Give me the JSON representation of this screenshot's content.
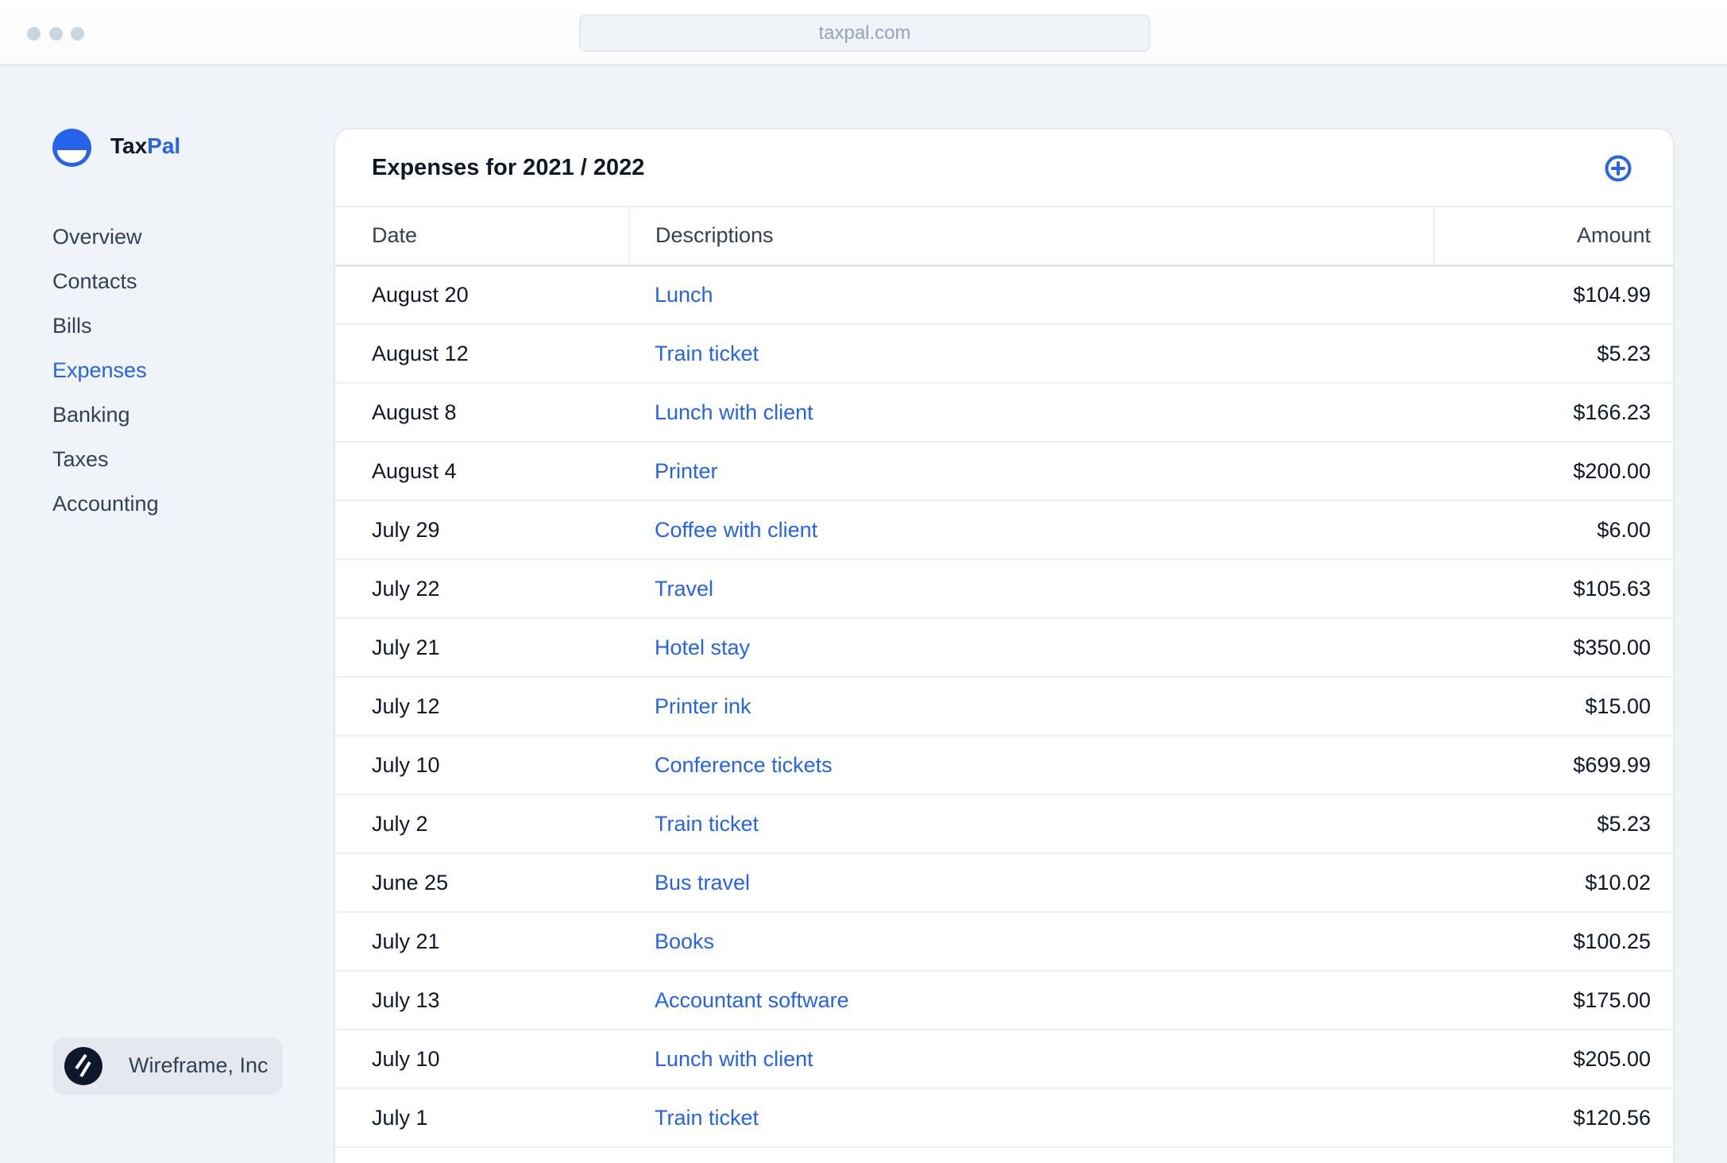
{
  "browser": {
    "url": "taxpal.com"
  },
  "brand": {
    "name_part1": "Tax",
    "name_part2": "Pal",
    "accent": "#2563eb"
  },
  "sidebar": {
    "items": [
      {
        "label": "Overview",
        "active": false
      },
      {
        "label": "Contacts",
        "active": false
      },
      {
        "label": "Bills",
        "active": false
      },
      {
        "label": "Expenses",
        "active": true
      },
      {
        "label": "Banking",
        "active": false
      },
      {
        "label": "Taxes",
        "active": false
      },
      {
        "label": "Accounting",
        "active": false
      }
    ],
    "company": "Wireframe, Inc"
  },
  "main": {
    "title": "Expenses for 2021 / 2022",
    "add_icon": "plus-circle-icon",
    "columns": [
      "Date",
      "Descriptions",
      "Amount"
    ],
    "rows": [
      [
        "August 20",
        "Lunch",
        "$104.99"
      ],
      [
        "August 12",
        "Train ticket",
        "$5.23"
      ],
      [
        "August 8",
        "Lunch with client",
        "$166.23"
      ],
      [
        "August 4",
        "Printer",
        "$200.00"
      ],
      [
        "July 29",
        "Coffee with client",
        "$6.00"
      ],
      [
        "July 22",
        "Travel",
        "$105.63"
      ],
      [
        "July 21",
        "Hotel stay",
        "$350.00"
      ],
      [
        "July 12",
        "Printer ink",
        "$15.00"
      ],
      [
        "July 10",
        "Conference tickets",
        "$699.99"
      ],
      [
        "July 2",
        "Train ticket",
        "$5.23"
      ],
      [
        "June 25",
        "Bus travel",
        "$10.02"
      ],
      [
        "July 21",
        "Books",
        "$100.25"
      ],
      [
        "July 13",
        "Accountant software",
        "$175.00"
      ],
      [
        "July 10",
        "Lunch with client",
        "$205.00"
      ],
      [
        "July 1",
        "Train ticket",
        "$120.56"
      ],
      [
        "",
        "",
        ""
      ]
    ]
  }
}
